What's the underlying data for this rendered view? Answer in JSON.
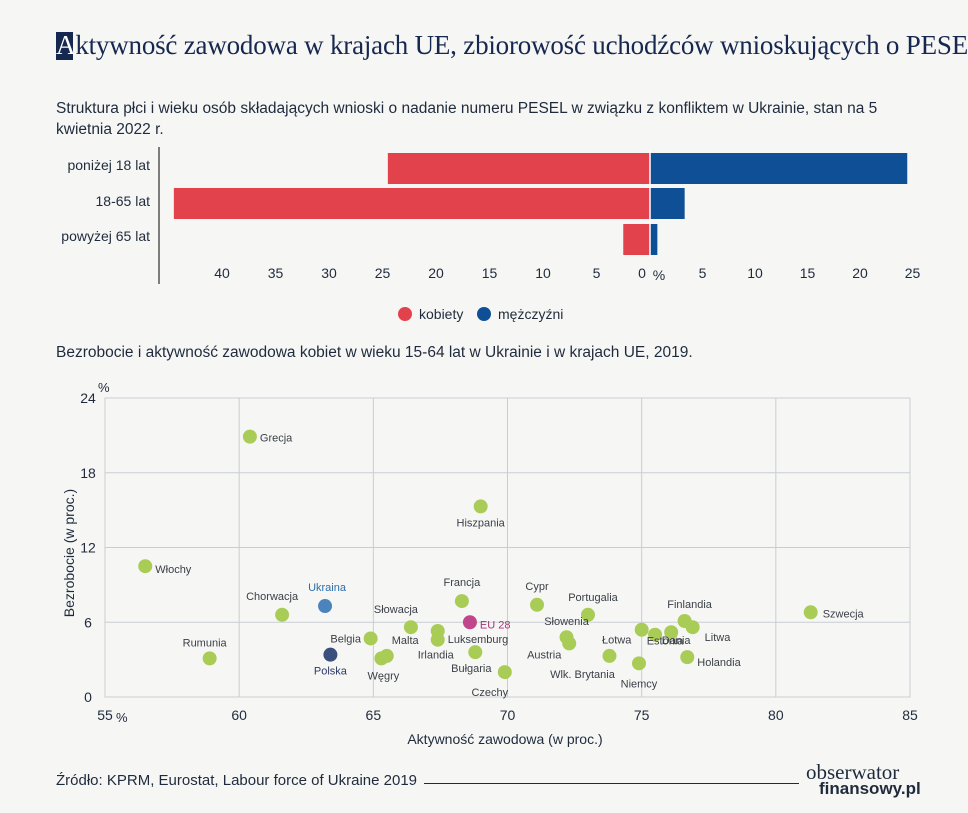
{
  "header": {
    "title_first": "A",
    "title_rest": "ktywność zawodowa w krajach UE, zbiorowość uchodźców wnioskujących o PESEL"
  },
  "bar_chart": {
    "subtitle": "Struktura płci i wieku osób składających wnioski o nadanie numeru PESEL w związku z konfliktem w Ukrainie, stan na 5 kwietnia 2022 r."
  },
  "scatter_chart": {
    "subtitle": "Bezrobocie i aktywność zawodowa kobiet w wieku 15-64 lat w Ukrainie i w krajach UE, 2019."
  },
  "footer": {
    "source": "Źródło:  KPRM, Eurostat, Labour force of Ukraine 2019",
    "brand_line1": "obserwator",
    "brand_line2": "finansowy.pl"
  },
  "colors": {
    "women": "#e2424c",
    "men": "#0f4f96",
    "eu_country": "#a9cc57",
    "ukraine": "#4b83bd",
    "poland": "#3b4f7e",
    "eu28": "#c0458b",
    "title": "#16284f"
  },
  "chart_data": [
    {
      "type": "bar",
      "orientation": "horizontal",
      "subtype": "population-pyramid",
      "categories": [
        "poniżej 18 lat",
        "18-65 lat",
        "powyżej 65 lat"
      ],
      "series": [
        {
          "name": "kobiety",
          "values": [
            24.5,
            44.5,
            2.5
          ]
        },
        {
          "name": "mężczyźni",
          "values": [
            24.5,
            3.3,
            0.7
          ]
        }
      ],
      "left_ticks": [
        40,
        35,
        30,
        25,
        20,
        15,
        10,
        5,
        0
      ],
      "right_ticks": [
        5,
        10,
        15,
        20,
        25
      ],
      "unit_label": "%",
      "xlim_left": [
        0,
        44.5
      ],
      "xlim_right": [
        0,
        25
      ]
    },
    {
      "type": "scatter",
      "xlabel": "Aktywność zawodowa (w proc.)",
      "ylabel": "Bezrobocie (w proc.)",
      "xlim": [
        55,
        85
      ],
      "ylim": [
        0,
        24
      ],
      "x_ticks": [
        "55",
        "60",
        "65",
        "70",
        "75",
        "80",
        "85"
      ],
      "y_ticks": [
        "0",
        "6",
        "12",
        "18",
        "24"
      ],
      "x_unit": "%",
      "y_unit": "%",
      "grid": true,
      "points": [
        {
          "label": "Grecja",
          "x": 60.4,
          "y": 20.9,
          "group": "eu"
        },
        {
          "label": "Hiszpania",
          "x": 69.0,
          "y": 15.3,
          "group": "eu"
        },
        {
          "label": "Włochy",
          "x": 56.5,
          "y": 10.5,
          "group": "eu"
        },
        {
          "label": "Chorwacja",
          "x": 61.6,
          "y": 6.6,
          "group": "eu"
        },
        {
          "label": "Ukraina",
          "x": 63.2,
          "y": 7.3,
          "group": "ukraine"
        },
        {
          "label": "Francja",
          "x": 68.3,
          "y": 7.7,
          "group": "eu"
        },
        {
          "label": "Cypr",
          "x": 71.1,
          "y": 7.4,
          "group": "eu"
        },
        {
          "label": "Portugalia",
          "x": 73.0,
          "y": 6.6,
          "group": "eu"
        },
        {
          "label": "EU 28",
          "x": 68.6,
          "y": 6.0,
          "group": "eu28"
        },
        {
          "label": "Słowacja",
          "x": 66.4,
          "y": 5.6,
          "group": "eu"
        },
        {
          "label": "Luksemburg",
          "x": 67.4,
          "y": 5.3,
          "group": "eu"
        },
        {
          "label": "Belgia",
          "x": 64.9,
          "y": 4.7,
          "group": "eu"
        },
        {
          "label": "Malta",
          "x": 65.5,
          "y": 3.3,
          "group": "eu"
        },
        {
          "label": "Węgry",
          "x": 65.3,
          "y": 3.1,
          "group": "eu"
        },
        {
          "label": "Irlandia",
          "x": 67.4,
          "y": 4.6,
          "group": "eu"
        },
        {
          "label": "Polska",
          "x": 63.4,
          "y": 3.4,
          "group": "poland"
        },
        {
          "label": "Rumunia",
          "x": 58.9,
          "y": 3.1,
          "group": "eu"
        },
        {
          "label": "Bułgaria",
          "x": 68.8,
          "y": 3.6,
          "group": "eu"
        },
        {
          "label": "Czechy",
          "x": 69.9,
          "y": 2.0,
          "group": "eu"
        },
        {
          "label": "Słowenia",
          "x": 72.2,
          "y": 4.8,
          "group": "eu"
        },
        {
          "label": "Austria",
          "x": 72.3,
          "y": 4.3,
          "group": "eu"
        },
        {
          "label": "Wlk. Brytania",
          "x": 73.8,
          "y": 3.3,
          "group": "eu"
        },
        {
          "label": "Łotwa",
          "x": 75.0,
          "y": 5.4,
          "group": "eu"
        },
        {
          "label": "Estonia",
          "x": 75.5,
          "y": 5.0,
          "group": "eu"
        },
        {
          "label": "Niemcy",
          "x": 74.9,
          "y": 2.7,
          "group": "eu"
        },
        {
          "label": "Finlandia",
          "x": 76.6,
          "y": 6.1,
          "group": "eu"
        },
        {
          "label": "Litwa",
          "x": 76.9,
          "y": 5.6,
          "group": "eu"
        },
        {
          "label": "Dania",
          "x": 76.1,
          "y": 5.2,
          "group": "eu"
        },
        {
          "label": "Holandia",
          "x": 76.7,
          "y": 3.2,
          "group": "eu"
        },
        {
          "label": "Szwecja",
          "x": 81.3,
          "y": 6.8,
          "group": "eu"
        }
      ],
      "legend": [
        {
          "name": "kobiety",
          "color": "#e2424c"
        },
        {
          "name": "mężczyźni",
          "color": "#0f4f96"
        }
      ]
    }
  ]
}
